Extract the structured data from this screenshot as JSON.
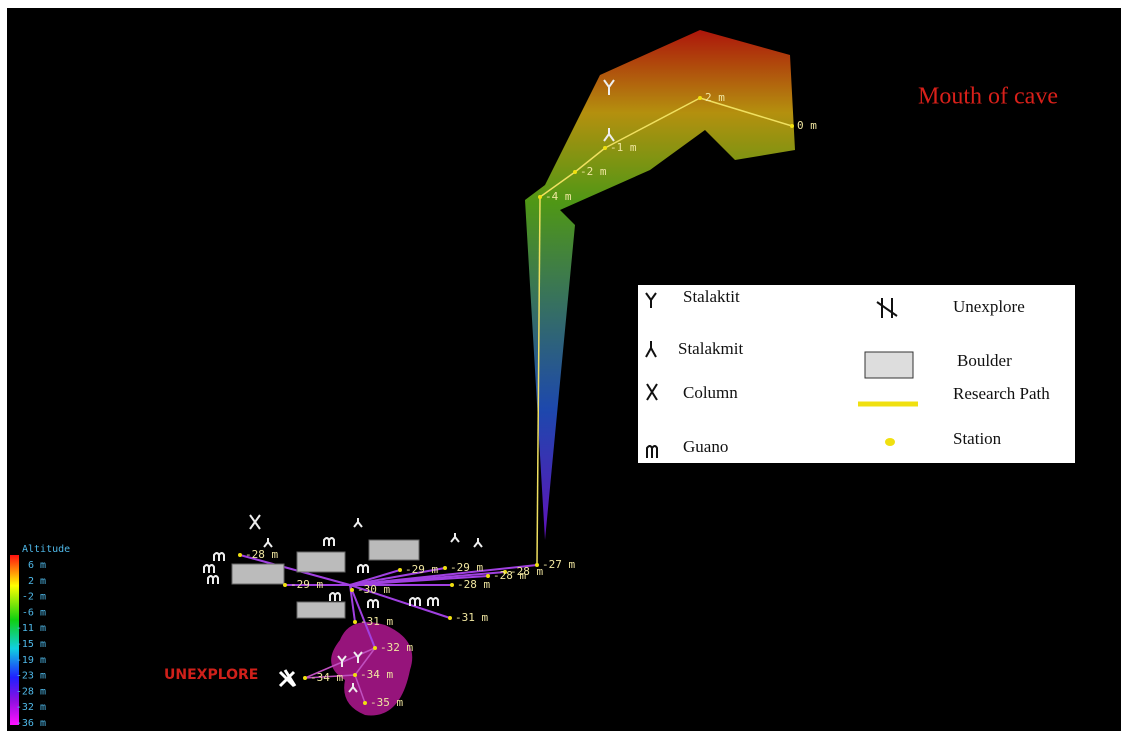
{
  "mouth_label": "Mouth of cave",
  "unexplore_label": "UNEXPLORE",
  "altitude_scale": {
    "title": "Altitude",
    "labels": [
      "6 m",
      "2 m",
      "-2 m",
      "-6 m",
      "-11 m",
      "-15 m",
      "-19 m",
      "-23 m",
      "-28 m",
      "-32 m",
      "-36 m"
    ]
  },
  "stations": [
    "0 m",
    "2 m",
    "-1 m",
    "-2 m",
    "-4 m",
    "-27 m",
    "-28 m",
    "-28 m",
    "-29 m",
    "-29 m",
    "-28 m",
    "-30 m",
    "-29 m",
    "-28 m",
    "-31 m",
    "-31 m",
    "-32 m",
    "-34 m",
    "-34 m",
    "-35 m"
  ],
  "legend": [
    "Stalaktit",
    "Stalakmit",
    "Column",
    "Guano",
    "Unexplore",
    "Boulder",
    "Research Path",
    "Station"
  ]
}
